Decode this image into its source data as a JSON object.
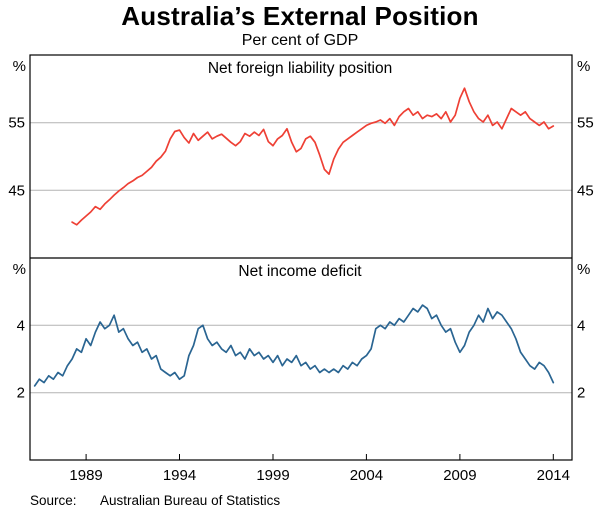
{
  "header": {
    "title": "Australia’s External Position",
    "subtitle": "Per cent of GDP"
  },
  "footer": {
    "source_label": "Source:",
    "source_text": "Australian Bureau of Statistics"
  },
  "chart_data": {
    "type": "line",
    "title": "Australia’s External Position",
    "subtitle": "Per cent of GDP",
    "x_unit": "year (quarterly observations)",
    "xlim": [
      1986,
      2015
    ],
    "xticks": [
      1989,
      1994,
      1999,
      2004,
      2009,
      2014
    ],
    "grid": "horizontal",
    "panels": [
      {
        "label": "Net foreign liability position",
        "unit": "%",
        "ylim": [
          35,
          65
        ],
        "yticks": [
          45,
          55
        ],
        "series": [
          {
            "name": "Net foreign liability position (per cent of GDP)",
            "color": "#ee4035",
            "x_start": 1988.25,
            "x_step": 0.25,
            "values": [
              40.3,
              39.9,
              40.6,
              41.2,
              41.8,
              42.6,
              42.2,
              43.0,
              43.6,
              44.3,
              44.9,
              45.4,
              46.0,
              46.4,
              46.9,
              47.2,
              47.8,
              48.4,
              49.3,
              49.9,
              50.8,
              52.6,
              53.7,
              53.9,
              52.8,
              52.0,
              53.4,
              52.4,
              53.0,
              53.6,
              52.6,
              53.0,
              53.3,
              52.7,
              52.1,
              51.6,
              52.2,
              53.4,
              53.0,
              53.6,
              53.1,
              54.0,
              52.2,
              51.6,
              52.6,
              53.1,
              54.1,
              52.1,
              50.7,
              51.2,
              52.6,
              53.0,
              52.1,
              50.2,
              48.1,
              47.4,
              49.6,
              51.1,
              52.1,
              52.6,
              53.1,
              53.6,
              54.1,
              54.6,
              54.9,
              55.1,
              55.4,
              54.9,
              55.6,
              54.6,
              55.9,
              56.6,
              57.1,
              56.1,
              56.6,
              55.6,
              56.1,
              55.9,
              56.3,
              55.6,
              56.6,
              55.1,
              56.1,
              58.6,
              60.1,
              58.1,
              56.6,
              55.6,
              55.1,
              56.1,
              54.6,
              55.1,
              54.1,
              55.6,
              57.1,
              56.6,
              56.1,
              56.6,
              55.6,
              55.1,
              54.6,
              55.1,
              54.1,
              54.5
            ]
          }
        ]
      },
      {
        "label": "Net income deficit",
        "unit": "%",
        "ylim": [
          0,
          6
        ],
        "yticks": [
          2,
          4
        ],
        "series": [
          {
            "name": "Net income deficit (per cent of GDP)",
            "color": "#2a6592",
            "x_start": 1986.25,
            "x_step": 0.25,
            "values": [
              2.2,
              2.4,
              2.3,
              2.5,
              2.4,
              2.6,
              2.5,
              2.8,
              3.0,
              3.3,
              3.2,
              3.6,
              3.4,
              3.8,
              4.1,
              3.9,
              4.0,
              4.3,
              3.8,
              3.9,
              3.6,
              3.4,
              3.5,
              3.2,
              3.3,
              3.0,
              3.1,
              2.7,
              2.6,
              2.5,
              2.6,
              2.4,
              2.5,
              3.1,
              3.4,
              3.9,
              4.0,
              3.6,
              3.4,
              3.5,
              3.3,
              3.2,
              3.4,
              3.1,
              3.2,
              3.0,
              3.3,
              3.1,
              3.2,
              3.0,
              3.1,
              2.9,
              3.1,
              2.8,
              3.0,
              2.9,
              3.1,
              2.8,
              2.9,
              2.7,
              2.8,
              2.6,
              2.7,
              2.6,
              2.7,
              2.6,
              2.8,
              2.7,
              2.9,
              2.8,
              3.0,
              3.1,
              3.3,
              3.9,
              4.0,
              3.9,
              4.1,
              4.0,
              4.2,
              4.1,
              4.3,
              4.5,
              4.4,
              4.6,
              4.5,
              4.2,
              4.3,
              4.0,
              3.8,
              3.9,
              3.5,
              3.2,
              3.4,
              3.8,
              4.0,
              4.3,
              4.1,
              4.5,
              4.2,
              4.4,
              4.3,
              4.1,
              3.9,
              3.6,
              3.2,
              3.0,
              2.8,
              2.7,
              2.9,
              2.8,
              2.6,
              2.3
            ]
          }
        ]
      }
    ]
  }
}
